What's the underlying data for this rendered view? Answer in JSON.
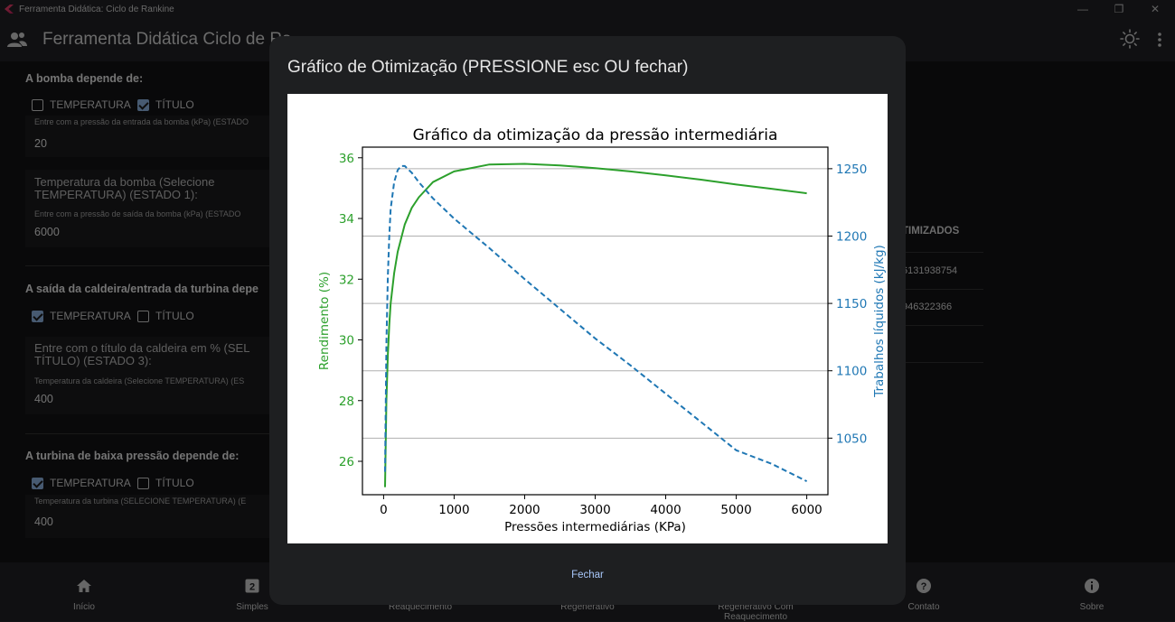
{
  "window": {
    "title": "Ferramenta Didática: Ciclo de Rankine",
    "minimize": "—",
    "restore": "❐",
    "close": "✕"
  },
  "appbar": {
    "title": "Ferramenta Didática Ciclo de Ra",
    "menu_icon": "users-icon",
    "theme_icon": "sun-icon",
    "more_icon": "more-vert-icon"
  },
  "form": {
    "sec1": {
      "title": "A bomba depende de:",
      "cb1": {
        "label": "TEMPERATURA",
        "checked": false
      },
      "cb2": {
        "label": "TÍTULO",
        "checked": true
      },
      "f1_label": "Entre com a pressão da entrada da bomba (kPa) (ESTADO",
      "f1_value": "20",
      "big_line1": "Temperatura da bomba (Selecione",
      "big_line2": "TEMPERATURA) (ESTADO 1):",
      "f2_label": "Entre com a pressão de saída da bomba (kPa) (ESTADO",
      "f2_value": "6000"
    },
    "sec2": {
      "title": "A saída da caldeira/entrada da turbina depe",
      "cb1": {
        "label": "TEMPERATURA",
        "checked": true
      },
      "cb2": {
        "label": "TÍTULO",
        "checked": false
      },
      "big_line1": "Entre com o título da caldeira em % (SEL",
      "big_line2": "TÍTULO) (ESTADO 3):",
      "f1_label": "Temperatura da caldeira (Selecione TEMPERATURA) (ES",
      "f1_value": "400"
    },
    "sec3": {
      "title": "A turbina de baixa pressão depende de:",
      "cb1": {
        "label": "TEMPERATURA",
        "checked": true
      },
      "cb2": {
        "label": "TÍTULO",
        "checked": false
      },
      "f1_label": "Temperatura da turbina (SELECIONE TEMPERATURA) (E",
      "f1_value": "400"
    }
  },
  "results": {
    "header": "TIMIZADOS",
    "v1": "6131938754",
    "v2": "946322366"
  },
  "nav": [
    {
      "label": "Início",
      "icon": "home-icon"
    },
    {
      "label": "Simples",
      "icon": "looks-two-icon"
    },
    {
      "label": "Reaquecimento",
      "icon": "fire-icon"
    },
    {
      "label": "Regenerativo",
      "icon": "sync-icon"
    },
    {
      "label": "Regenerativo Com Reaquecimento",
      "icon": "cycle-icon"
    },
    {
      "label": "Contato",
      "icon": "help-icon"
    },
    {
      "label": "Sobre",
      "icon": "info-icon"
    }
  ],
  "dialog": {
    "title": "Gráfico de Otimização (PRESSIONE esc OU fechar)",
    "close_button": "Fechar"
  },
  "chart_data": {
    "type": "line",
    "title": "Gráfico da otimização da pressão intermediária",
    "xlabel": "Pressões intermediárias (KPa)",
    "ylabel_left": "Rendimento (%)",
    "ylabel_right": "Trabalhos líquidos (kJ/kg)",
    "xlim": [
      -300,
      6300
    ],
    "ylim_left": [
      24.9,
      36.35
    ],
    "ylim_right": [
      1008,
      1266
    ],
    "x_ticks": [
      0,
      1000,
      2000,
      3000,
      4000,
      5000,
      6000
    ],
    "y_left_ticks": [
      26,
      28,
      30,
      32,
      34,
      36
    ],
    "y_right_ticks": [
      1050,
      1100,
      1150,
      1200,
      1250
    ],
    "grid": "horizontal lines at right-axis ticks",
    "colors": {
      "left": "#2ca02c",
      "right": "#1f77b4"
    },
    "series": [
      {
        "axis": "left",
        "style": "solid",
        "color": "#2ca02c",
        "x": [
          20,
          40,
          60,
          80,
          100,
          150,
          200,
          300,
          400,
          500,
          700,
          1000,
          1500,
          2000,
          2500,
          3000,
          3500,
          4000,
          4500,
          5000,
          5500,
          6000
        ],
        "y": [
          25.15,
          28.0,
          29.5,
          30.5,
          31.2,
          32.2,
          32.9,
          33.8,
          34.35,
          34.7,
          35.2,
          35.55,
          35.78,
          35.8,
          35.75,
          35.66,
          35.55,
          35.42,
          35.28,
          35.12,
          34.98,
          34.83
        ]
      },
      {
        "axis": "right",
        "style": "dashed",
        "color": "#1f77b4",
        "x": [
          20,
          40,
          60,
          80,
          100,
          150,
          200,
          250,
          300,
          400,
          500,
          700,
          1000,
          1500,
          2000,
          2500,
          3000,
          3500,
          4000,
          4500,
          5000,
          5500,
          6000
        ],
        "y": [
          1025,
          1120,
          1170,
          1200,
          1220,
          1240,
          1249,
          1252,
          1252,
          1247,
          1240,
          1228,
          1213,
          1191,
          1168,
          1146,
          1124,
          1104,
          1083,
          1062,
          1041,
          1031,
          1018
        ]
      }
    ]
  }
}
